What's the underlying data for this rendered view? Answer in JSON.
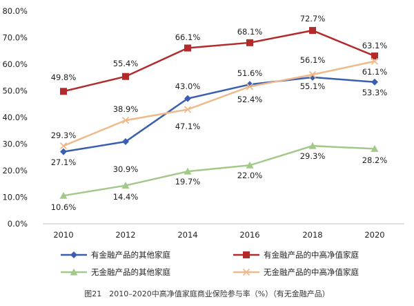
{
  "chart_data": {
    "type": "line",
    "caption": "图21　2010–2020中高净值家庭商业保险参与率（%）（有无金融产品）",
    "x": [
      "2010",
      "2012",
      "2014",
      "2016",
      "2018",
      "2020"
    ],
    "ylim": [
      0,
      80
    ],
    "yticks": [
      "0.0%",
      "10.0%",
      "20.0%",
      "30.0%",
      "40.0%",
      "50.0%",
      "60.0%",
      "70.0%",
      "80.0%"
    ],
    "grid": false,
    "legend_position": "bottom",
    "series": [
      {
        "name": "有金融产品的其他家庭",
        "color": "#3a5fb0",
        "marker": "diamond",
        "values": [
          27.1,
          30.9,
          47.1,
          52.4,
          55.1,
          53.3
        ],
        "labels": [
          "27.1%",
          "30.9%",
          "47.1%",
          "52.4%",
          "55.1%",
          "53.3%"
        ]
      },
      {
        "name": "有金融产品的中高净值家庭",
        "color": "#b22a2a",
        "marker": "square",
        "values": [
          49.8,
          55.4,
          66.1,
          68.1,
          72.7,
          63.1
        ],
        "labels": [
          "49.8%",
          "55.4%",
          "66.1%",
          "68.1%",
          "72.7%",
          "63.1%"
        ]
      },
      {
        "name": "无金融产品的其他家庭",
        "color": "#a3c98a",
        "marker": "triangle",
        "values": [
          10.6,
          14.4,
          19.7,
          22.0,
          29.3,
          28.2
        ],
        "labels": [
          "10.6%",
          "14.4%",
          "19.7%",
          "22.0%",
          "29.3%",
          "28.2%"
        ]
      },
      {
        "name": "无金融产品的中高净值家庭",
        "color": "#f0b98a",
        "marker": "x",
        "values": [
          29.3,
          38.9,
          43.0,
          51.6,
          56.1,
          61.1
        ],
        "labels": [
          "29.3%",
          "38.9%",
          "43.0%",
          "51.6%",
          "56.1%",
          "61.1%"
        ]
      }
    ]
  }
}
